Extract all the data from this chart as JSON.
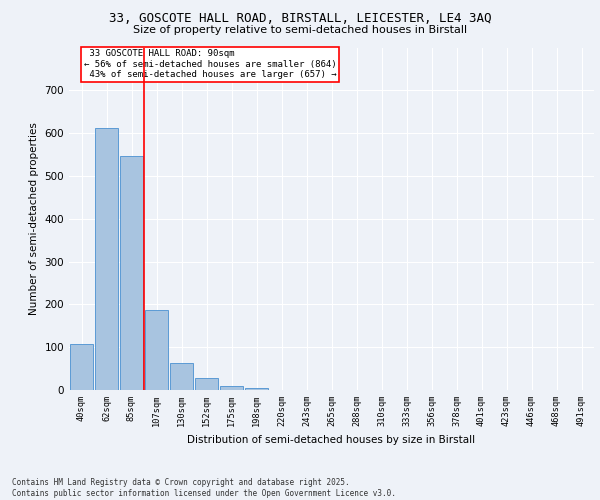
{
  "title_line1": "33, GOSCOTE HALL ROAD, BIRSTALL, LEICESTER, LE4 3AQ",
  "title_line2": "Size of property relative to semi-detached houses in Birstall",
  "xlabel": "Distribution of semi-detached houses by size in Birstall",
  "ylabel": "Number of semi-detached properties",
  "bins": [
    "40sqm",
    "62sqm",
    "85sqm",
    "107sqm",
    "130sqm",
    "152sqm",
    "175sqm",
    "198sqm",
    "220sqm",
    "243sqm",
    "265sqm",
    "288sqm",
    "310sqm",
    "333sqm",
    "356sqm",
    "378sqm",
    "401sqm",
    "423sqm",
    "446sqm",
    "468sqm",
    "491sqm"
  ],
  "values": [
    108,
    613,
    547,
    188,
    63,
    28,
    10,
    5,
    0,
    0,
    0,
    0,
    0,
    0,
    0,
    0,
    0,
    0,
    0,
    0,
    0
  ],
  "bar_color": "#a8c4e0",
  "bar_edge_color": "#5b9bd5",
  "red_line_x": 2.5,
  "red_line_label": "33 GOSCOTE HALL ROAD: 90sqm",
  "pct_smaller": 56,
  "pct_smaller_count": 864,
  "pct_larger": 43,
  "pct_larger_count": 657,
  "ylim": [
    0,
    800
  ],
  "yticks": [
    0,
    100,
    200,
    300,
    400,
    500,
    600,
    700,
    800
  ],
  "background_color": "#eef2f8",
  "grid_color": "#ffffff",
  "footer_line1": "Contains HM Land Registry data © Crown copyright and database right 2025.",
  "footer_line2": "Contains public sector information licensed under the Open Government Licence v3.0."
}
